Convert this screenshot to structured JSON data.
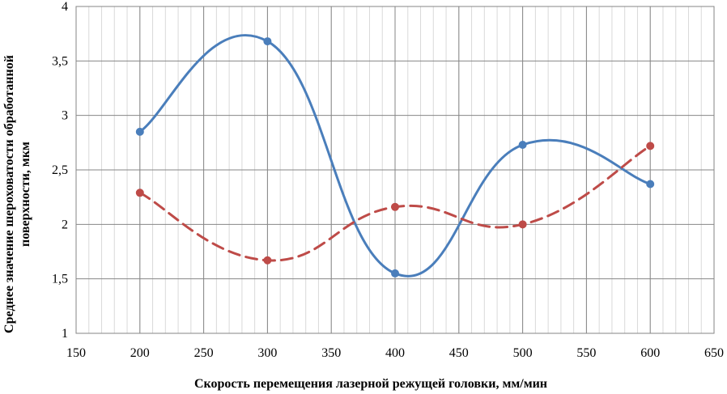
{
  "chart_data": {
    "type": "scatter",
    "title": "",
    "xlabel": "Скорость перемещения лазерной режущей головки, мм/мин",
    "ylabel": [
      "Среднее значение шероховатости обработанной",
      "поверхности, мкм"
    ],
    "xlim": [
      150,
      650
    ],
    "ylim": [
      1,
      4
    ],
    "x_ticks": [
      150,
      200,
      250,
      300,
      350,
      400,
      450,
      500,
      550,
      600,
      650
    ],
    "x_tick_labels": [
      "150",
      "200",
      "250",
      "300",
      "350",
      "400",
      "450",
      "500",
      "550",
      "600",
      "650"
    ],
    "y_ticks": [
      1,
      1.5,
      2,
      2.5,
      3,
      3.5,
      4
    ],
    "y_tick_labels": [
      "1",
      "1,5",
      "2",
      "2,5",
      "3",
      "3,5",
      "4"
    ],
    "x_minor_step": 10,
    "grid": true,
    "legend": "none",
    "series": [
      {
        "x": [
          200,
          300,
          400,
          500,
          600
        ],
        "y": [
          2.85,
          3.68,
          1.55,
          2.73,
          2.37
        ],
        "color": "#4A7EBB",
        "style": "solid-smooth"
      },
      {
        "x": [
          200,
          300,
          400,
          500,
          600
        ],
        "y": [
          2.29,
          1.67,
          2.16,
          2.0,
          2.72
        ],
        "color": "#BE4B48",
        "style": "dashed-smooth"
      }
    ]
  }
}
